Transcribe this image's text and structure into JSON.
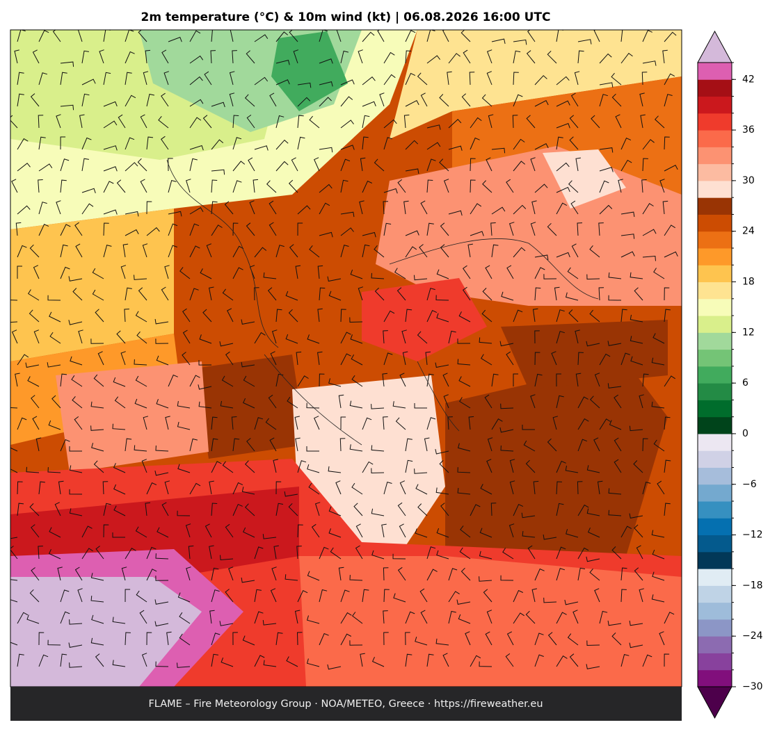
{
  "title": "2m temperature (°C) & 10m wind (kt)  |  06.08.2026 16:00 UTC",
  "footer": "FLAME – Fire Meteorology Group · NOA/METEO, Greece · https://fireweather.eu",
  "colorbar": {
    "levels": [
      -30,
      -28,
      -26,
      -24,
      -22,
      -20,
      -18,
      -16,
      -14,
      -12,
      -10,
      -8,
      -6,
      -4,
      -2,
      0,
      2,
      4,
      6,
      8,
      10,
      12,
      14,
      16,
      18,
      20,
      22,
      24,
      26,
      28,
      30,
      32,
      34,
      36,
      38,
      40,
      42,
      44
    ],
    "colors": [
      "#810f7c",
      "#88419d",
      "#8c6bb1",
      "#8c96c6",
      "#9ebcda",
      "#bfd3e6",
      "#e0ecf4",
      "#023858",
      "#045a8d",
      "#0570b0",
      "#3690c0",
      "#74a9cf",
      "#a6bddb",
      "#d0d1e6",
      "#ece7f2",
      "#00441b",
      "#006d2c",
      "#238b45",
      "#41ab5d",
      "#74c476",
      "#a1d99b",
      "#d9ef8b",
      "#f7fcb9",
      "#fee391",
      "#fec44f",
      "#fe9929",
      "#ec7014",
      "#cc4c02",
      "#993404",
      "#fee0d2",
      "#fcbba1",
      "#fc9272",
      "#fb6a4a",
      "#ef3b2c",
      "#cb181d",
      "#a50f15",
      "#dd5fb1"
    ],
    "over_color": "#d4b9da",
    "under_color": "#4d004b",
    "ticks": [
      {
        "value": -30,
        "label": "−30"
      },
      {
        "value": -24,
        "label": "−24"
      },
      {
        "value": -18,
        "label": "−18"
      },
      {
        "value": -12,
        "label": "−12"
      },
      {
        "value": -6,
        "label": "−6"
      },
      0,
      6,
      12,
      18,
      24,
      30,
      36,
      42
    ]
  }
}
